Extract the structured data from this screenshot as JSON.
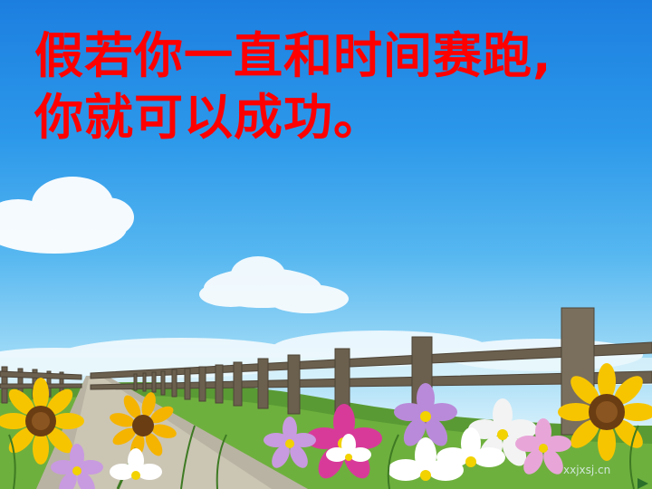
{
  "slide": {
    "title_line1": "假若你一直和时间赛跑,",
    "title_line2": "你就可以成功。",
    "title_color": "#ff0000",
    "watermark": "xxjxsj.cn"
  },
  "scene": {
    "sky_top": "#1c7fe0",
    "sky_bottom": "#d6f0fb",
    "fence_color": "#6b5f4e",
    "path_color": "#b9b3a3",
    "grass_color": "#5a9a34",
    "sunflower_petal": "#f7c500",
    "sunflower_center": "#6b3d12",
    "cosmos_colors": [
      "#d83a9a",
      "#f3f3f3",
      "#b98ad9",
      "#e8a6d8"
    ]
  }
}
